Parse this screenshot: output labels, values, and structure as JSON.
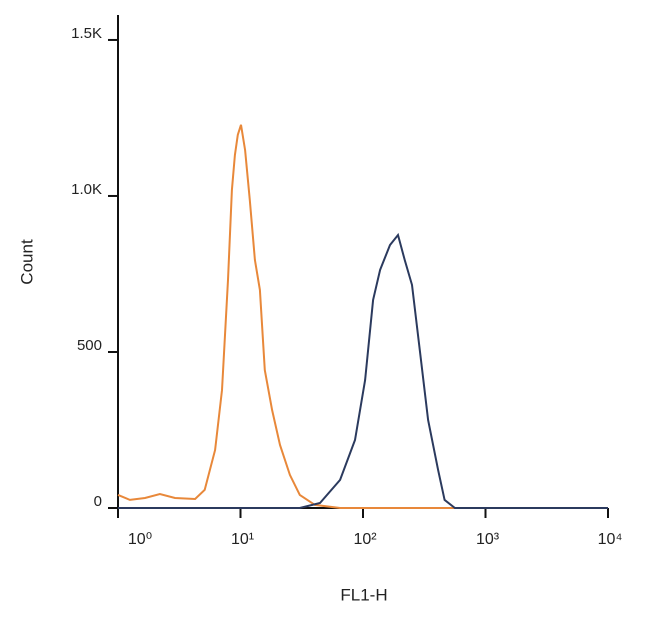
{
  "chart_data": {
    "type": "line",
    "x_label": "FL1-H",
    "y_label": "Count",
    "log_x": true,
    "xlim": [
      1,
      10000
    ],
    "xticks": [
      {
        "value": 1,
        "label": "10⁰"
      },
      {
        "value": 10,
        "label": "10¹"
      },
      {
        "value": 100,
        "label": "10²"
      },
      {
        "value": 1000,
        "label": "10³"
      },
      {
        "value": 10000,
        "label": "10⁴"
      }
    ],
    "ylim": [
      0,
      1580
    ],
    "yticks": [
      0,
      500,
      {
        "value": 1000,
        "label": "1.0K"
      },
      {
        "value": 1500,
        "label": "1.5K"
      }
    ],
    "series": [
      {
        "color": "#e8883a",
        "x": [
          1,
          1.25,
          1.66,
          2.2,
          2.92,
          4.26,
          5.1,
          6.2,
          7.06,
          7.9,
          8.5,
          9.0,
          9.5,
          10.1,
          10.9,
          11.9,
          13.1,
          14.4,
          15.8,
          18.1,
          21.0,
          25.3,
          30.5,
          40.5,
          65,
          10000
        ],
        "values": [
          42,
          26,
          32,
          45,
          32,
          29,
          58,
          186,
          378,
          731,
          1019,
          1131,
          1196,
          1228,
          1147,
          987,
          795,
          699,
          442,
          314,
          202,
          106,
          42,
          10,
          0,
          0
        ]
      },
      {
        "color": "#2b3a5e",
        "x": [
          1,
          30.5,
          44.6,
          65,
          86,
          104,
          121,
          138,
          166,
          193,
          219,
          251,
          291,
          340,
          410,
          464,
          563,
          10000
        ],
        "values": [
          0,
          0,
          16,
          90,
          218,
          410,
          667,
          763,
          843,
          875,
          795,
          715,
          506,
          282,
          122,
          26,
          0,
          0
        ]
      }
    ]
  }
}
